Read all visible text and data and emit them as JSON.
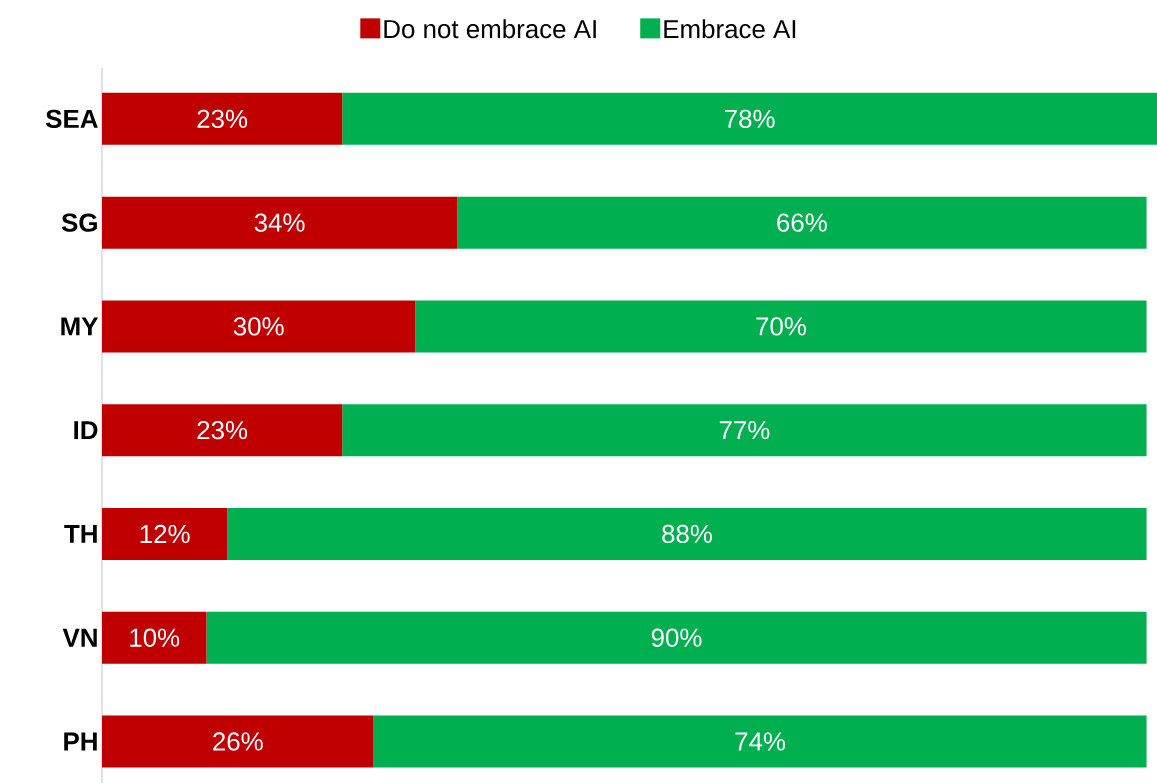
{
  "chart_data": {
    "type": "bar",
    "orientation": "horizontal",
    "stacked": true,
    "categories": [
      "SEA",
      "SG",
      "MY",
      "ID",
      "TH",
      "VN",
      "PH"
    ],
    "series": [
      {
        "name": "Do not embrace AI",
        "color": "#c00000",
        "values": [
          23,
          34,
          30,
          23,
          12,
          10,
          26
        ],
        "value_labels": [
          "23%",
          "34%",
          "30%",
          "23%",
          "12%",
          "10%",
          "26%"
        ]
      },
      {
        "name": "Embrace AI",
        "color": "#00b050",
        "values": [
          78,
          66,
          70,
          77,
          88,
          90,
          74
        ],
        "value_labels": [
          "78%",
          "66%",
          "70%",
          "77%",
          "88%",
          "90%",
          "74%"
        ]
      }
    ],
    "legend": "top",
    "tick_labels": "y"
  }
}
